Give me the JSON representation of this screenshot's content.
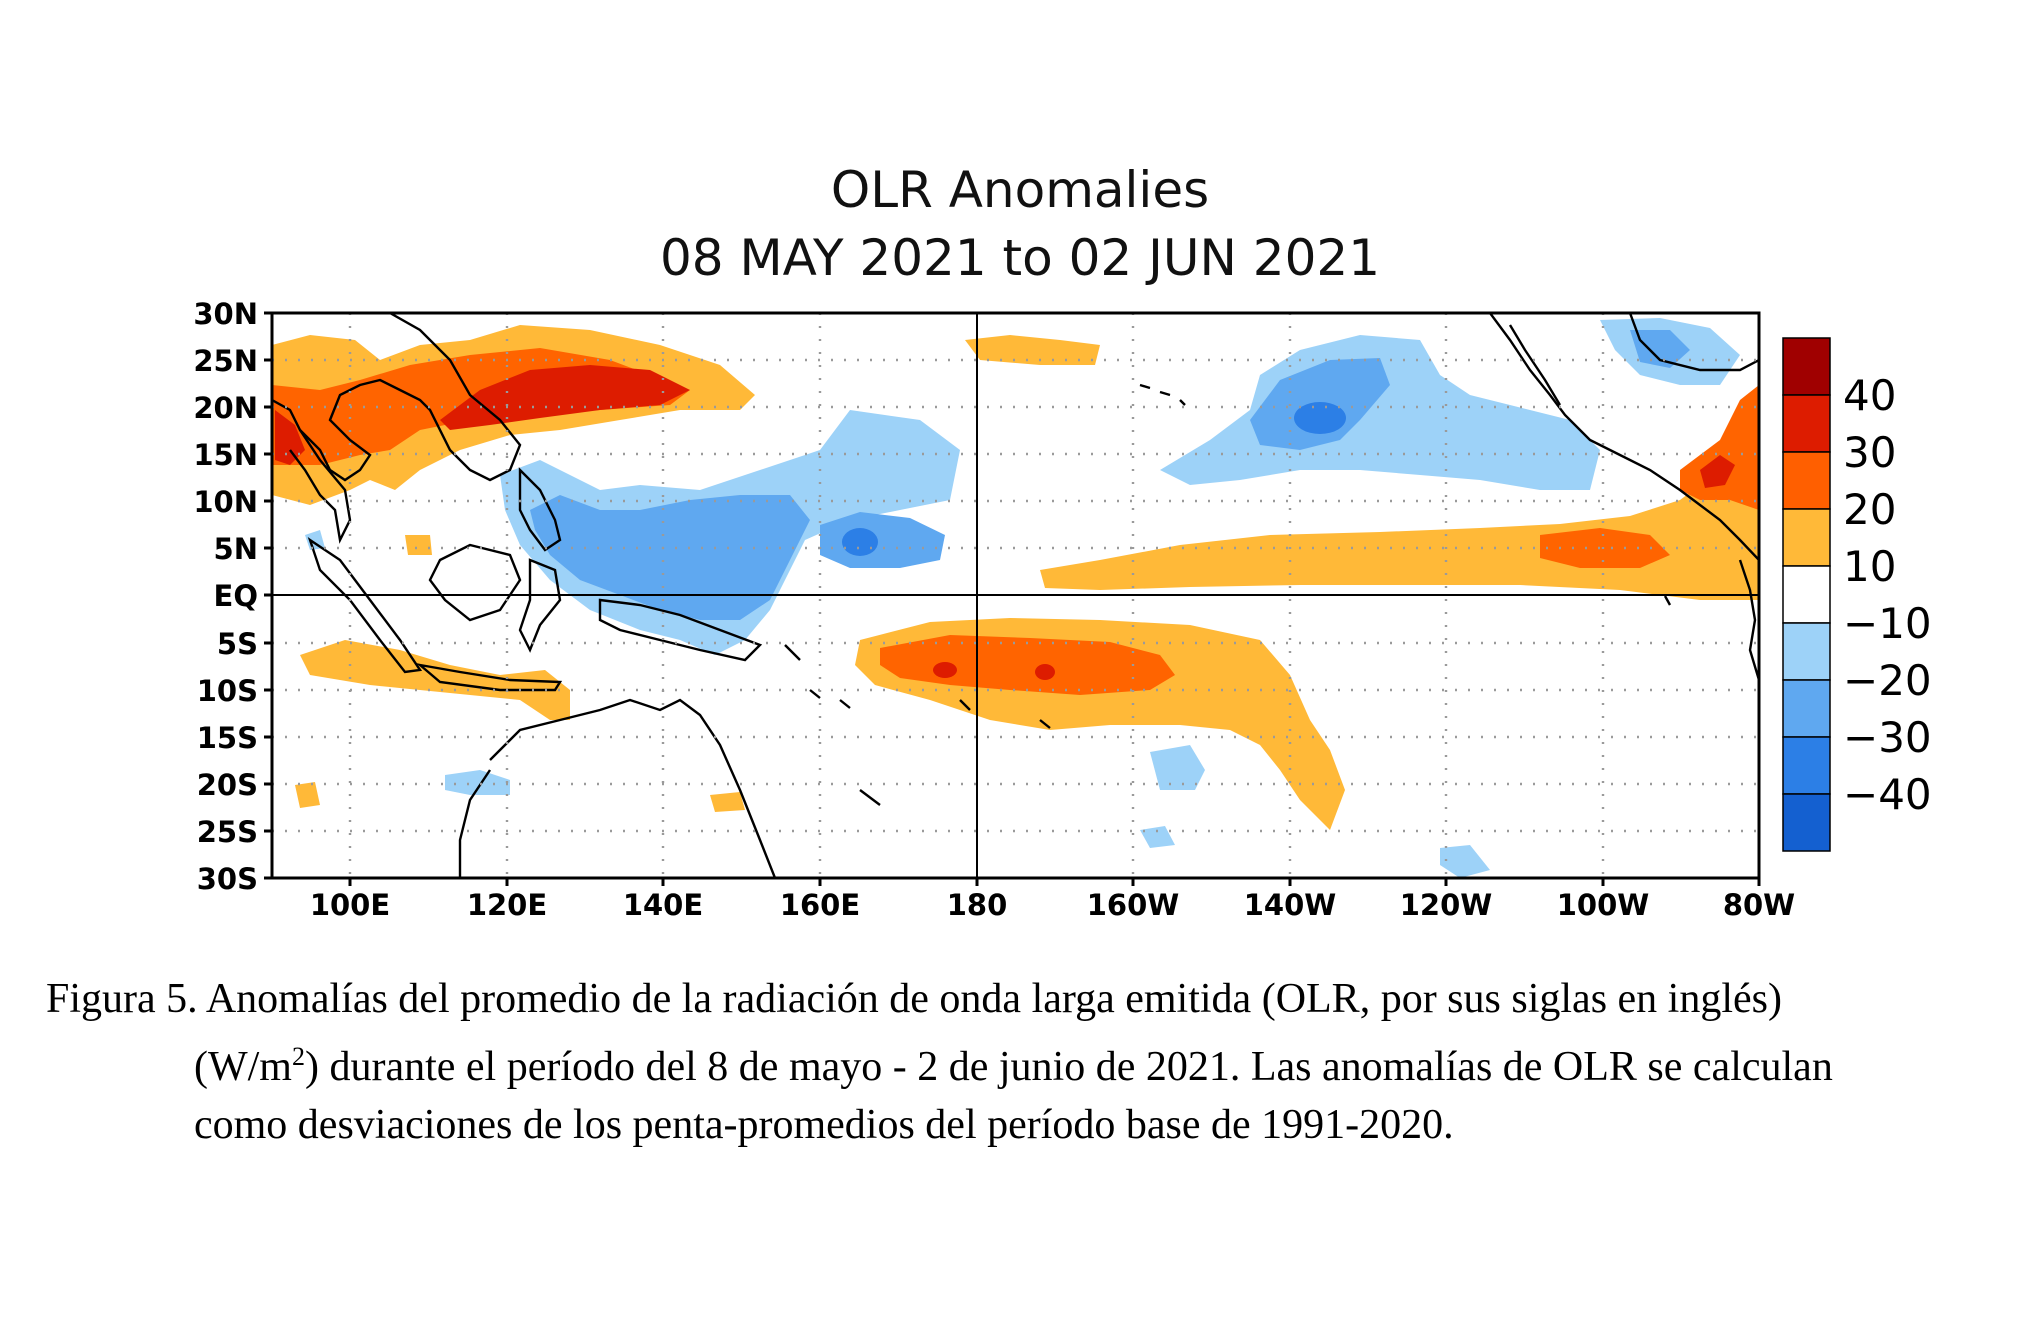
{
  "map": {
    "title": "OLR Anomalies",
    "subtitle": "08 MAY 2021 to 02 JUN 2021",
    "lon_labels": [
      "100E",
      "120E",
      "140E",
      "160E",
      "180",
      "160W",
      "140W",
      "120W",
      "100W",
      "80W"
    ],
    "lat_labels": [
      "30N",
      "25N",
      "20N",
      "15N",
      "10N",
      "5N",
      "EQ",
      "5S",
      "10S",
      "15S",
      "20S",
      "25S",
      "30S"
    ],
    "lon_range": [
      90,
      280
    ],
    "lat_range": [
      -30,
      30
    ],
    "legend": {
      "labels": [
        "40",
        "30",
        "20",
        "10",
        "−10",
        "−20",
        "−30",
        "−40"
      ],
      "colors": [
        "#a00000",
        "#dd1c00",
        "#ff5f00",
        "#ffb938",
        "#ffffff",
        "#9dd2f8",
        "#5fa8f0",
        "#2c7fe6",
        "#1460d0"
      ]
    },
    "colors": {
      "pos10": "#ffb938",
      "pos20": "#ff6400",
      "pos30": "#dd1c00",
      "neg10": "#9dd2f8",
      "neg20": "#5fa8f0",
      "neg30": "#2c7fe6"
    }
  },
  "caption": {
    "line1": "Figura 5. Anomalías del promedio de la radiación de onda larga emitida (OLR, por sus siglas en inglés)",
    "line2_a": "(W/m",
    "line2_sup": "2",
    "line2_b": ") durante el período del 8 de mayo - 2 de junio de 2021.  Las anomalías de OLR se calculan",
    "line3": "como desviaciones de los penta-promedios del período base de 1991-2020."
  }
}
